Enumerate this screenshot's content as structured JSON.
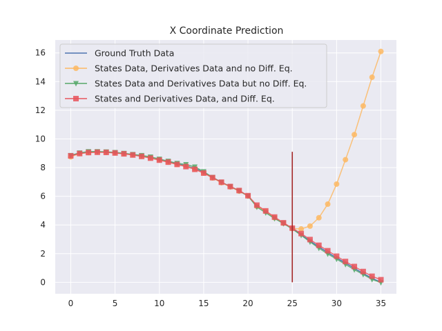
{
  "chart_data": {
    "type": "line",
    "title": "X Coordinate Prediction",
    "xlabel": "",
    "ylabel": "",
    "xlim": [
      -1.75,
      36.75
    ],
    "ylim": [
      -0.8,
      16.9
    ],
    "x_ticks": [
      0,
      5,
      10,
      15,
      20,
      25,
      30,
      35
    ],
    "y_ticks": [
      0,
      2,
      4,
      6,
      8,
      10,
      12,
      14,
      16
    ],
    "grid": true,
    "legend_position": "top-left",
    "x": [
      0,
      1,
      2,
      3,
      4,
      5,
      6,
      7,
      8,
      9,
      10,
      11,
      12,
      13,
      14,
      15,
      16,
      17,
      18,
      19,
      20,
      21,
      22,
      23,
      24,
      25,
      26,
      27,
      28,
      29,
      30,
      31,
      32,
      33,
      34,
      35
    ],
    "series": [
      {
        "name": "Ground Truth Data",
        "color": "#4c72b0",
        "marker": "none",
        "values": [
          8.85,
          9.0,
          9.08,
          9.1,
          9.08,
          9.04,
          8.98,
          8.9,
          8.82,
          8.72,
          8.58,
          8.43,
          8.28,
          8.12,
          7.95,
          7.68,
          7.32,
          6.98,
          6.68,
          6.38,
          6.02,
          5.3,
          4.92,
          4.48,
          4.12,
          3.75,
          3.32,
          2.88,
          2.47,
          2.08,
          1.7,
          1.35,
          0.98,
          0.62,
          0.28,
          0.0
        ]
      },
      {
        "name": "States Data, Derivatives Data and no Diff. Eq.",
        "color": "#fdb863",
        "marker": "circle",
        "values": [
          8.75,
          8.98,
          9.05,
          9.08,
          9.07,
          9.03,
          8.97,
          8.89,
          8.8,
          8.68,
          8.54,
          8.38,
          8.22,
          8.1,
          7.9,
          7.62,
          7.28,
          6.95,
          6.65,
          6.36,
          6.02,
          5.3,
          4.95,
          4.5,
          4.12,
          3.75,
          3.72,
          3.92,
          4.5,
          5.45,
          6.85,
          8.55,
          10.3,
          12.3,
          14.3,
          16.1
        ]
      },
      {
        "name": "States Data and Derivatives Data but no Diff. Eq.",
        "color": "#55a868",
        "marker": "triangle-down",
        "values": [
          8.85,
          9.03,
          9.12,
          9.12,
          9.1,
          9.06,
          9.0,
          8.92,
          8.85,
          8.75,
          8.6,
          8.45,
          8.3,
          8.22,
          8.05,
          7.72,
          7.32,
          6.98,
          6.68,
          6.38,
          6.02,
          5.25,
          4.85,
          4.45,
          4.1,
          3.72,
          3.28,
          2.82,
          2.38,
          1.98,
          1.62,
          1.25,
          0.88,
          0.55,
          0.2,
          -0.02
        ]
      },
      {
        "name": "States and Derivatives Data, and Diff. Eq.",
        "color": "#e8545c",
        "marker": "square",
        "values": [
          8.82,
          8.98,
          9.05,
          9.07,
          9.06,
          9.02,
          8.96,
          8.88,
          8.78,
          8.66,
          8.52,
          8.38,
          8.22,
          8.07,
          7.88,
          7.62,
          7.3,
          6.98,
          6.68,
          6.4,
          6.04,
          5.38,
          4.98,
          4.55,
          4.15,
          3.78,
          3.4,
          2.98,
          2.58,
          2.2,
          1.82,
          1.45,
          1.1,
          0.75,
          0.42,
          0.18
        ]
      }
    ],
    "vertical_line": {
      "x": 25,
      "y_from": 0,
      "y_to": 9.1,
      "color": "#a52a2a"
    }
  }
}
